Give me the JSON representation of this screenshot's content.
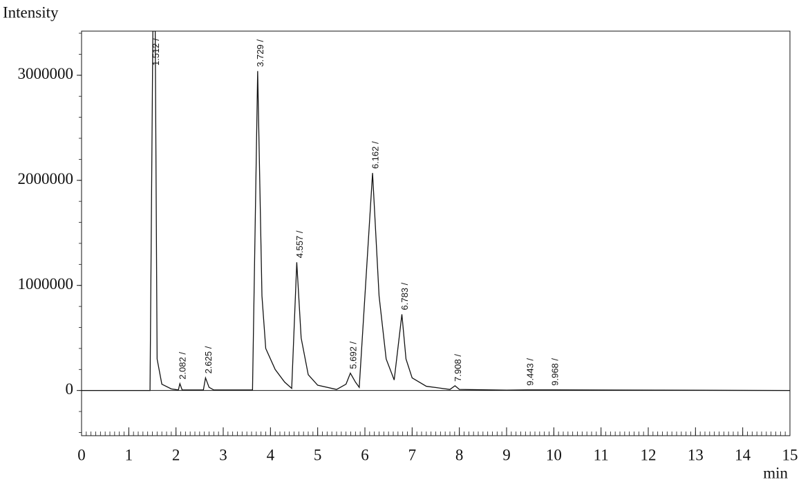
{
  "chart_data": {
    "type": "line",
    "y_label": "Intensity",
    "x_label": "min",
    "color": "#111111",
    "xlim": [
      0,
      15
    ],
    "xticks": [
      0,
      1,
      2,
      3,
      4,
      5,
      6,
      7,
      8,
      9,
      10,
      11,
      12,
      13,
      14,
      15
    ],
    "x_minor_step": 0.1,
    "ylim": [
      -430000,
      3420000
    ],
    "yticks": [
      0,
      1000000,
      2000000,
      3000000
    ],
    "y_minor_step": 200000,
    "zero_line": true,
    "x": [
      0,
      1.45,
      1.51,
      1.56,
      1.6,
      1.7,
      1.9,
      2.05,
      2.082,
      2.13,
      2.58,
      2.625,
      2.7,
      2.8,
      3.62,
      3.729,
      3.82,
      3.9,
      4.1,
      4.3,
      4.45,
      4.557,
      4.65,
      4.8,
      5.0,
      5.4,
      5.6,
      5.692,
      5.8,
      5.88,
      6.162,
      6.3,
      6.45,
      6.62,
      6.783,
      6.87,
      7.0,
      7.3,
      7.8,
      7.908,
      8.0,
      9.0,
      9.443,
      9.968,
      15
    ],
    "values": [
      0,
      0,
      3420000,
      3420000,
      300000,
      60000,
      15000,
      5000,
      65000,
      5000,
      5000,
      120000,
      30000,
      5000,
      5000,
      3040000,
      900000,
      400000,
      200000,
      80000,
      20000,
      1220000,
      500000,
      150000,
      50000,
      10000,
      60000,
      165000,
      80000,
      30000,
      2070000,
      900000,
      300000,
      100000,
      725000,
      300000,
      120000,
      40000,
      10000,
      45000,
      10000,
      3000,
      6000,
      6000,
      0
    ],
    "annotations": [
      {
        "text": "1.512 /",
        "x": 1.512,
        "y": 3200000
      },
      {
        "text": "2.082 /",
        "x": 2.082,
        "y": 65000
      },
      {
        "text": "2.625 /",
        "x": 2.625,
        "y": 120000
      },
      {
        "text": "3.729 /",
        "x": 3.729,
        "y": 3040000
      },
      {
        "text": "4.557 /",
        "x": 4.557,
        "y": 1220000
      },
      {
        "text": "5.692 /",
        "x": 5.692,
        "y": 165000
      },
      {
        "text": "6.162 /",
        "x": 6.162,
        "y": 2070000
      },
      {
        "text": "6.783 /",
        "x": 6.783,
        "y": 725000
      },
      {
        "text": "7.908 /",
        "x": 7.908,
        "y": 45000
      },
      {
        "text": "9.443 /",
        "x": 9.443,
        "y": 6000
      },
      {
        "text": "9.968 /",
        "x": 9.968,
        "y": 6000
      }
    ]
  }
}
